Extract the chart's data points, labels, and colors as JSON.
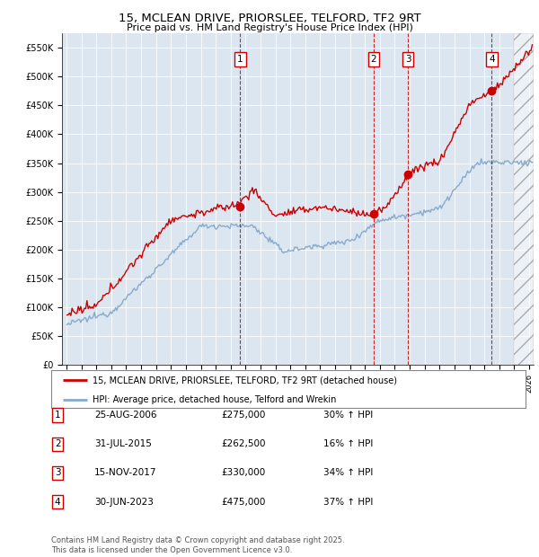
{
  "title": "15, MCLEAN DRIVE, PRIORSLEE, TELFORD, TF2 9RT",
  "subtitle": "Price paid vs. HM Land Registry's House Price Index (HPI)",
  "ylim": [
    0,
    575000
  ],
  "yticks": [
    0,
    50000,
    100000,
    150000,
    200000,
    250000,
    300000,
    350000,
    400000,
    450000,
    500000,
    550000
  ],
  "ytick_labels": [
    "£0",
    "£50K",
    "£100K",
    "£150K",
    "£200K",
    "£250K",
    "£300K",
    "£350K",
    "£400K",
    "£450K",
    "£500K",
    "£550K"
  ],
  "sale_t": [
    2006.646,
    2015.583,
    2017.875,
    2023.5
  ],
  "sale_prices": [
    275000,
    262500,
    330000,
    475000
  ],
  "sale_labels": [
    "1",
    "2",
    "3",
    "4"
  ],
  "legend_entries": [
    "15, MCLEAN DRIVE, PRIORSLEE, TELFORD, TF2 9RT (detached house)",
    "HPI: Average price, detached house, Telford and Wrekin"
  ],
  "table_rows": [
    [
      "1",
      "25-AUG-2006",
      "£275,000",
      "30% ↑ HPI"
    ],
    [
      "2",
      "31-JUL-2015",
      "£262,500",
      "16% ↑ HPI"
    ],
    [
      "3",
      "15-NOV-2017",
      "£330,000",
      "34% ↑ HPI"
    ],
    [
      "4",
      "30-JUN-2023",
      "£475,000",
      "37% ↑ HPI"
    ]
  ],
  "footer": "Contains HM Land Registry data © Crown copyright and database right 2025.\nThis data is licensed under the Open Government Licence v3.0.",
  "red_color": "#cc0000",
  "blue_color": "#88aacc",
  "plot_bg": "#dce6f1",
  "fig_bg": "#ffffff",
  "hatch_start": 2025.0,
  "xlim": [
    1994.7,
    2026.3
  ]
}
